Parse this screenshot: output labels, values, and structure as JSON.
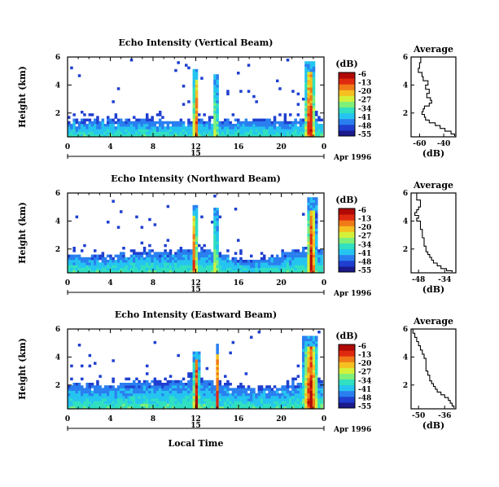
{
  "figure": {
    "xlabel": "Local Time",
    "date_label": "Apr 1996",
    "day_label": "15",
    "colorbar_title": "(dB)",
    "colorbar_ticks": [
      "-6",
      "-13",
      "-20",
      "-27",
      "-34",
      "-41",
      "-48",
      "-55"
    ],
    "colorbar_colors": [
      "#1a1a8c",
      "#1f3fd0",
      "#2a7ff0",
      "#25c4f0",
      "#30e0c0",
      "#7ef07a",
      "#d4f03a",
      "#f5c020",
      "#f07a18",
      "#e02a10",
      "#b00a08"
    ]
  },
  "chart_data": [
    {
      "type": "heatmap",
      "title": "Echo Intensity (Vertical Beam)",
      "ylabel": "Height (km)",
      "x_ticks": [
        "0",
        "4",
        "8",
        "12",
        "16",
        "20",
        "0"
      ],
      "y_ticks": [
        "6",
        "4",
        "2"
      ],
      "xlim": [
        0,
        24
      ],
      "ylim": [
        0.3,
        6
      ],
      "colorbar_range_db": [
        -55,
        -6
      ],
      "layer_top_km": [
        1.5,
        1.55,
        1.6,
        1.55,
        1.5,
        1.55,
        1.6,
        1.6,
        1.55,
        1.5,
        1.5,
        1.55,
        1.6,
        1.55,
        1.5,
        1.5,
        1.55,
        1.5,
        1.5,
        1.55,
        1.5,
        1.5,
        1.55,
        1.6,
        1.6
      ],
      "convection": [
        {
          "t_start": 11.8,
          "t_end": 12.3,
          "top_km": 5.2
        },
        {
          "t_start": 13.8,
          "t_end": 14.1,
          "top_km": 4.8
        },
        {
          "t_start": 22.3,
          "t_end": 23.3,
          "top_km": 5.9
        }
      ]
    },
    {
      "type": "heatmap",
      "title": "Echo Intensity (Northward Beam)",
      "ylabel": "Height (km)",
      "x_ticks": [
        "0",
        "4",
        "8",
        "12",
        "16",
        "20",
        "0"
      ],
      "y_ticks": [
        "6",
        "4",
        "2"
      ],
      "xlim": [
        0,
        24
      ],
      "ylim": [
        0.3,
        6
      ],
      "colorbar_range_db": [
        -55,
        -6
      ],
      "layer_top_km": [
        1.6,
        1.5,
        1.5,
        1.6,
        1.6,
        1.7,
        1.8,
        1.8,
        1.9,
        1.9,
        2.0,
        2.0,
        2.1,
        2.0,
        1.8,
        1.6,
        1.4,
        1.2,
        1.3,
        1.4,
        1.6,
        1.8,
        2.0,
        2.1,
        2.0
      ],
      "convection": [
        {
          "t_start": 11.7,
          "t_end": 12.2,
          "top_km": 5.3
        },
        {
          "t_start": 13.8,
          "t_end": 14.1,
          "top_km": 5.0
        },
        {
          "t_start": 22.5,
          "t_end": 23.4,
          "top_km": 5.8
        }
      ]
    },
    {
      "type": "heatmap",
      "title": "Echo Intensity (Eastward Beam)",
      "ylabel": "Height (km)",
      "x_ticks": [
        "0",
        "4",
        "8",
        "12",
        "16",
        "20",
        "0"
      ],
      "y_ticks": [
        "6",
        "4",
        "2"
      ],
      "xlim": [
        0,
        24
      ],
      "ylim": [
        0.3,
        6
      ],
      "colorbar_range_db": [
        -55,
        -6
      ],
      "layer_top_km": [
        2.0,
        2.1,
        2.1,
        2.0,
        2.1,
        2.2,
        2.3,
        2.3,
        2.3,
        2.2,
        2.4,
        2.5,
        2.8,
        2.4,
        2.2,
        2.0,
        2.0,
        1.9,
        1.8,
        1.9,
        1.9,
        2.0,
        2.2,
        2.4,
        2.3
      ],
      "convection": [
        {
          "t_start": 11.8,
          "t_end": 12.4,
          "top_km": 4.5
        },
        {
          "t_start": 13.9,
          "t_end": 14.2,
          "top_km": 5.1
        },
        {
          "t_start": 22.1,
          "t_end": 23.6,
          "top_km": 5.7
        }
      ]
    },
    {
      "type": "line",
      "title": "Average",
      "xlabel": "(dB)",
      "ylabel": "",
      "x_ticks": [
        "-60",
        "-40"
      ],
      "xlim": [
        -67,
        -30
      ],
      "ylim": [
        0.3,
        6
      ],
      "x": [
        -58,
        -59,
        -60,
        -61,
        -58,
        -57,
        -53,
        -55,
        -52,
        -54,
        -51,
        -50,
        -52,
        -56,
        -57,
        -58,
        -56,
        -55,
        -52,
        -47,
        -43,
        -39,
        -34,
        -31
      ],
      "y": [
        6.0,
        5.6,
        5.2,
        4.9,
        4.6,
        4.3,
        4.0,
        3.7,
        3.4,
        3.1,
        2.9,
        2.7,
        2.5,
        2.3,
        2.1,
        1.9,
        1.7,
        1.5,
        1.3,
        1.1,
        0.9,
        0.7,
        0.5,
        0.35
      ]
    },
    {
      "type": "line",
      "title": "Average",
      "xlabel": "(dB)",
      "ylabel": "",
      "x_ticks": [
        "-48",
        "-34"
      ],
      "xlim": [
        -52,
        -28
      ],
      "ylim": [
        0.3,
        6
      ],
      "x": [
        -50,
        -49,
        -47,
        -48,
        -49,
        -50,
        -48,
        -49,
        -47,
        -47,
        -46,
        -46,
        -45,
        -45,
        -44,
        -44,
        -43,
        -42,
        -41,
        -40,
        -38,
        -36,
        -33,
        -30
      ],
      "y": [
        6.0,
        5.5,
        5.0,
        4.8,
        4.6,
        4.4,
        4.2,
        4.0,
        3.7,
        3.4,
        3.1,
        2.8,
        2.5,
        2.2,
        2.0,
        1.8,
        1.6,
        1.4,
        1.2,
        1.0,
        0.8,
        0.6,
        0.45,
        0.35
      ]
    },
    {
      "type": "line",
      "title": "Average",
      "xlabel": "(dB)",
      "ylabel": "",
      "x_ticks": [
        "-50",
        "-36"
      ],
      "xlim": [
        -54,
        -30
      ],
      "ylim": [
        0.3,
        6
      ],
      "x": [
        -54,
        -53,
        -52,
        -51,
        -50,
        -49,
        -48,
        -47,
        -46,
        -46,
        -46,
        -45,
        -44,
        -44,
        -43,
        -42,
        -41,
        -40,
        -38,
        -36,
        -34,
        -33,
        -32,
        -31
      ],
      "y": [
        6.0,
        5.7,
        5.4,
        5.1,
        4.8,
        4.5,
        4.2,
        3.9,
        3.6,
        3.3,
        3.0,
        2.7,
        2.5,
        2.3,
        2.1,
        1.9,
        1.7,
        1.5,
        1.3,
        1.1,
        0.9,
        0.7,
        0.5,
        0.35
      ]
    }
  ]
}
